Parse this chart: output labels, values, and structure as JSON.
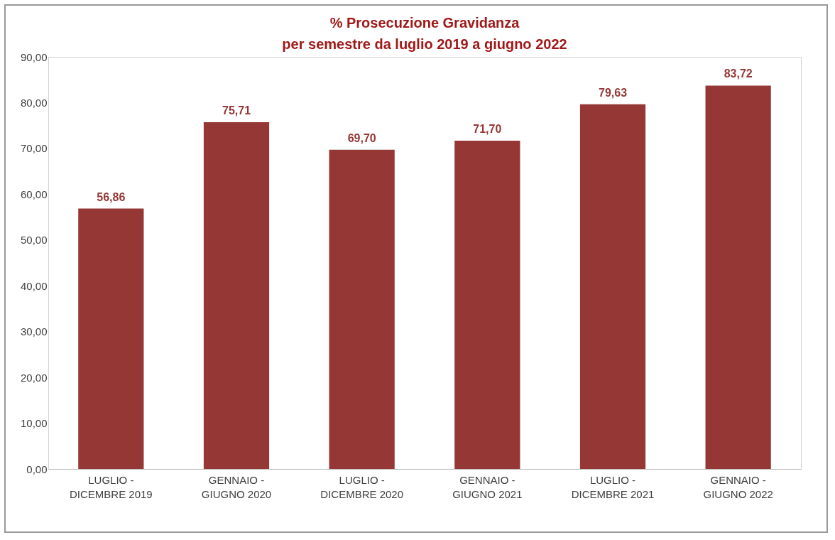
{
  "chart_data": {
    "type": "bar",
    "title": [
      "% Prosecuzione Gravidanza",
      "per semestre da luglio 2019 a giugno 2022"
    ],
    "categories": [
      "LUGLIO -\nDICEMBRE 2019",
      "GENNAIO -\nGIUGNO 2020",
      "LUGLIO -\nDICEMBRE 2020",
      "GENNAIO -\nGIUGNO 2021",
      "LUGLIO -\nDICEMBRE 2021",
      "GENNAIO -\nGIUGNO 2022"
    ],
    "values": [
      56.86,
      75.71,
      69.7,
      71.7,
      79.63,
      83.72
    ],
    "value_labels": [
      "56,86",
      "75,71",
      "69,70",
      "71,70",
      "79,63",
      "83,72"
    ],
    "color": "#953735",
    "ylim": [
      0,
      90
    ],
    "yticks": [
      {
        "value": 0,
        "label": "0,00"
      },
      {
        "value": 10,
        "label": "10,00"
      },
      {
        "value": 20,
        "label": "20,00"
      },
      {
        "value": 30,
        "label": "30,00"
      },
      {
        "value": 40,
        "label": "40,00"
      },
      {
        "value": 50,
        "label": "50,00"
      },
      {
        "value": 60,
        "label": "60,00"
      },
      {
        "value": 70,
        "label": "70,00"
      },
      {
        "value": 80,
        "label": "80,00"
      },
      {
        "value": 90,
        "label": "90,00"
      }
    ],
    "grid": false
  }
}
